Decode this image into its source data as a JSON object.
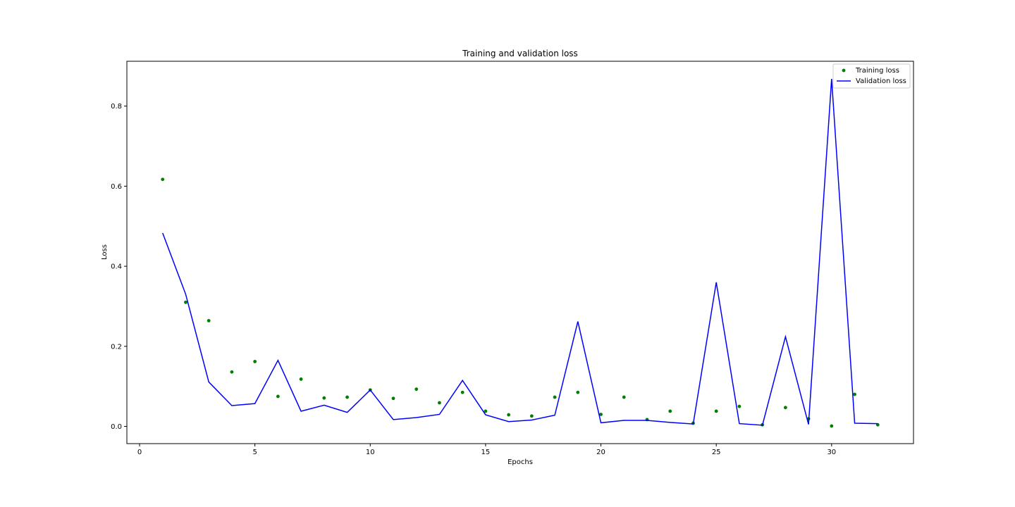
{
  "chart_data": {
    "type": "line",
    "title": "Training and validation loss",
    "xlabel": "Epochs",
    "ylabel": "Loss",
    "xlim": [
      -0.55,
      33.55
    ],
    "ylim": [
      -0.043,
      0.912
    ],
    "xticks": [
      0,
      5,
      10,
      15,
      20,
      25,
      30
    ],
    "yticks": [
      0.0,
      0.2,
      0.4,
      0.6,
      0.8
    ],
    "grid": false,
    "legend_position": "top-right",
    "x": [
      1,
      2,
      3,
      4,
      5,
      6,
      7,
      8,
      9,
      10,
      11,
      12,
      13,
      14,
      15,
      16,
      17,
      18,
      19,
      20,
      21,
      22,
      23,
      24,
      25,
      26,
      27,
      28,
      29,
      30,
      31,
      32
    ],
    "series": [
      {
        "name": "Training loss",
        "style": "scatter",
        "color": "#008000",
        "values": [
          0.617,
          0.31,
          0.264,
          0.136,
          0.162,
          0.075,
          0.118,
          0.071,
          0.073,
          0.091,
          0.07,
          0.093,
          0.059,
          0.085,
          0.038,
          0.029,
          0.026,
          0.073,
          0.085,
          0.03,
          0.073,
          0.017,
          0.038,
          0.008,
          0.038,
          0.05,
          0.004,
          0.047,
          0.019,
          0.001,
          0.08,
          0.004
        ]
      },
      {
        "name": "Validation loss",
        "style": "line",
        "color": "#0000ff",
        "values": [
          0.483,
          0.33,
          0.111,
          0.052,
          0.057,
          0.165,
          0.038,
          0.053,
          0.035,
          0.091,
          0.017,
          0.022,
          0.03,
          0.115,
          0.029,
          0.012,
          0.016,
          0.028,
          0.262,
          0.009,
          0.015,
          0.015,
          0.01,
          0.006,
          0.36,
          0.007,
          0.003,
          0.224,
          0.005,
          0.868,
          0.008,
          0.007
        ]
      }
    ]
  }
}
